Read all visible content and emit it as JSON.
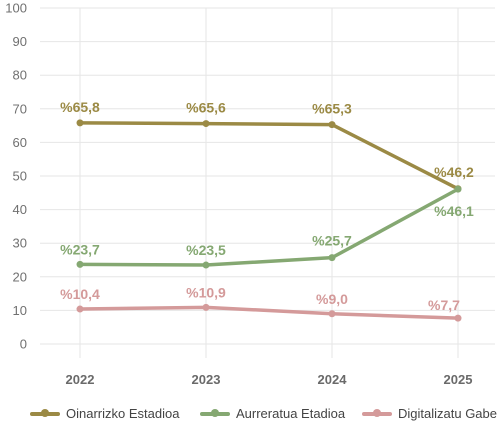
{
  "chart_data": {
    "type": "line",
    "categories": [
      "2022",
      "2023",
      "2024",
      "2025"
    ],
    "ylim": [
      0,
      100
    ],
    "yticks": [
      0,
      10,
      20,
      30,
      40,
      50,
      60,
      70,
      80,
      90,
      100
    ],
    "grid": true,
    "legend_position": "bottom",
    "series": [
      {
        "name": "Oinarrizko Estadioa",
        "color": "#9b8a45",
        "values": [
          65.8,
          65.6,
          65.3,
          46.2
        ],
        "labels": [
          "%65,8",
          "%65,6",
          "%65,3",
          "%46,2"
        ]
      },
      {
        "name": "Aurreratua Etadioa",
        "color": "#85a872",
        "values": [
          23.7,
          23.5,
          25.7,
          46.1
        ],
        "labels": [
          "%23,7",
          "%23,5",
          "%25,7",
          "%46,1"
        ]
      },
      {
        "name": "Digitalizatu Gabe",
        "color": "#d49a9a",
        "values": [
          10.4,
          10.9,
          9.0,
          7.7
        ],
        "labels": [
          "%10,4",
          "%10,9",
          "%9,0",
          "%7,7"
        ]
      }
    ]
  }
}
